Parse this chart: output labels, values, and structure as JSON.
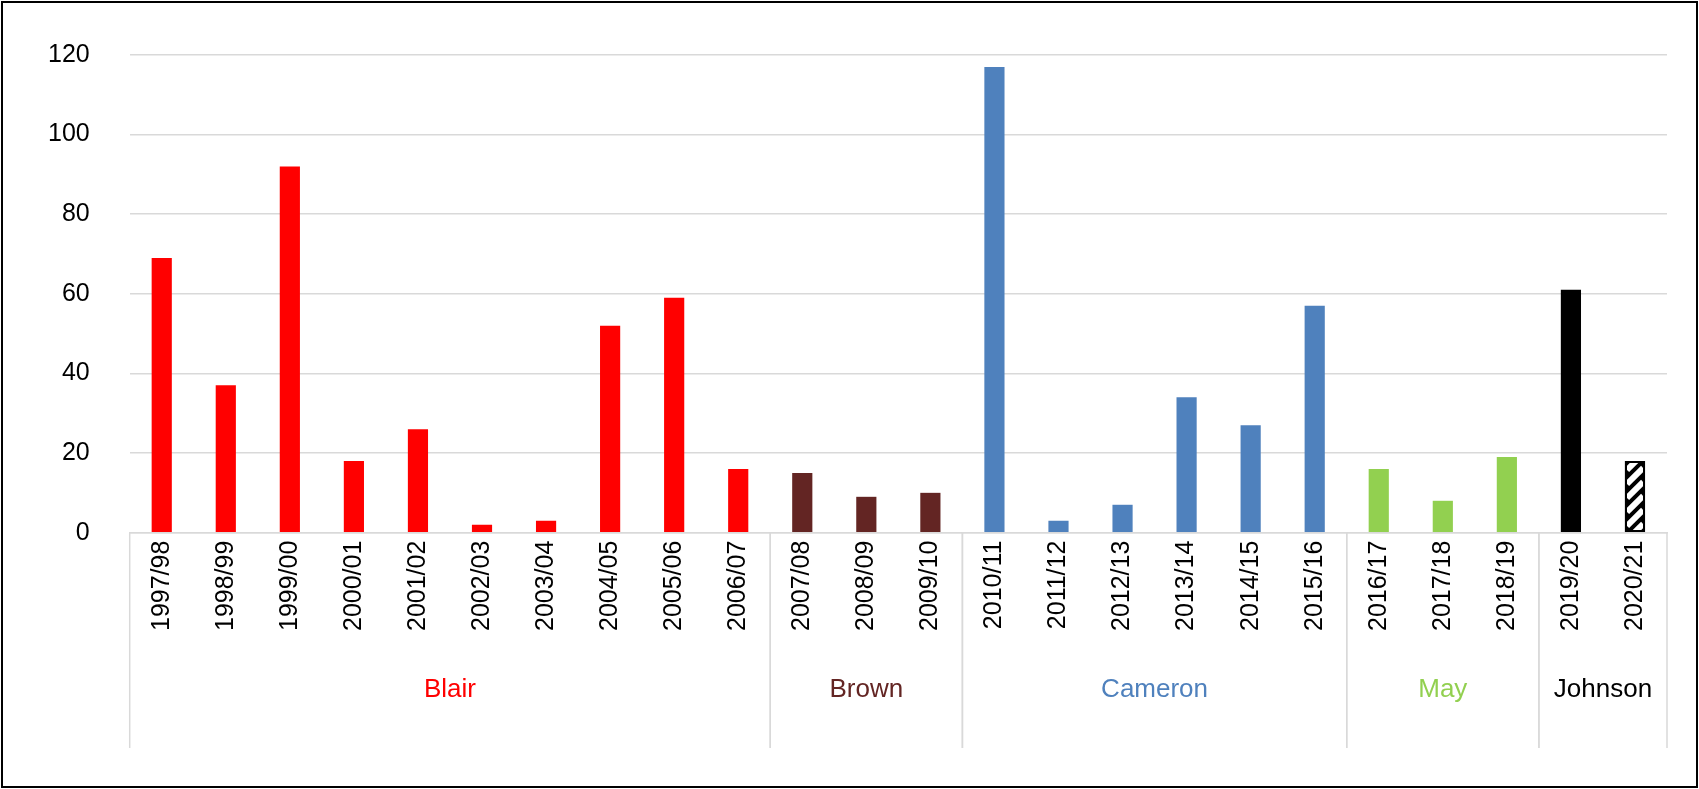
{
  "chart_data": {
    "type": "bar",
    "categories": [
      "1997/98",
      "1998/99",
      "1999/00",
      "2000/01",
      "2001/02",
      "2002/03",
      "2003/04",
      "2004/05",
      "2005/06",
      "2006/07",
      "2007/08",
      "2008/09",
      "2009/10",
      "2010/11",
      "2011/12",
      "2012/13",
      "2013/14",
      "2014/15",
      "2015/16",
      "2016/17",
      "2017/18",
      "2018/19",
      "2019/20",
      "2020/21"
    ],
    "series": [
      {
        "name": "Blair",
        "color": "#ff0000",
        "values": [
          69,
          37,
          92,
          18,
          26,
          2,
          3,
          52,
          59,
          16,
          null,
          null,
          null,
          null,
          null,
          null,
          null,
          null,
          null,
          null,
          null,
          null,
          null,
          null
        ]
      },
      {
        "name": "Brown",
        "color": "#632523",
        "values": [
          null,
          null,
          null,
          null,
          null,
          null,
          null,
          null,
          null,
          null,
          15,
          9,
          10,
          null,
          null,
          null,
          null,
          null,
          null,
          null,
          null,
          null,
          null,
          null
        ]
      },
      {
        "name": "Cameron",
        "color": "#4f81bd",
        "values": [
          null,
          null,
          null,
          null,
          null,
          null,
          null,
          null,
          null,
          null,
          null,
          null,
          null,
          117,
          3,
          7,
          34,
          27,
          57,
          null,
          null,
          null,
          null,
          null
        ]
      },
      {
        "name": "May",
        "color": "#92d050",
        "values": [
          null,
          null,
          null,
          null,
          null,
          null,
          null,
          null,
          null,
          null,
          null,
          null,
          null,
          null,
          null,
          null,
          null,
          null,
          null,
          16,
          8,
          19,
          null,
          null
        ]
      },
      {
        "name": "Johnson",
        "color": "#000000",
        "values": [
          null,
          null,
          null,
          null,
          null,
          null,
          null,
          null,
          null,
          null,
          null,
          null,
          null,
          null,
          null,
          null,
          null,
          null,
          null,
          null,
          null,
          null,
          61,
          18
        ]
      }
    ],
    "ylim": [
      0,
      120
    ],
    "yticks": [
      0,
      20,
      40,
      60,
      80,
      100,
      120
    ],
    "grid": "y",
    "legend": false
  }
}
